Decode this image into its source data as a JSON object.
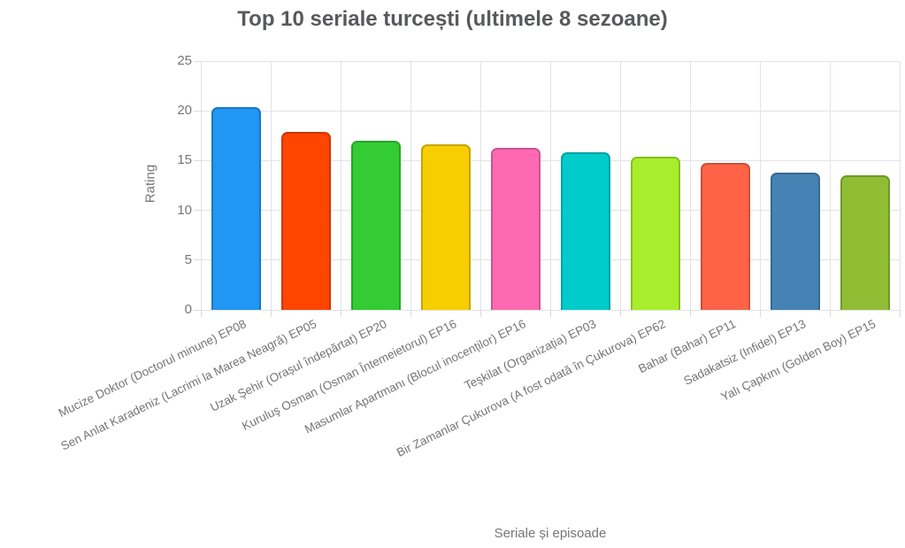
{
  "chart_data": {
    "type": "bar",
    "title": "Top 10 seriale turcești (ultimele 8 sezoane)",
    "xlabel": "Seriale și episoade",
    "ylabel": "Rating",
    "ylim": [
      0,
      25
    ],
    "yticks": [
      0,
      5,
      10,
      15,
      20,
      25
    ],
    "grid": true,
    "legend_position": "none",
    "categories": [
      "Mucize Doktor (Doctorul minune) EP08",
      "Sen Anlat Karadeniz (Lacrimi la Marea Neagră) EP05",
      "Uzak Şehir (Orașul îndepărtat) EP20",
      "Kuruluş Osman (Osman Întemeietorul) EP16",
      "Masumlar Apartmanı (Blocul inocenților) EP16",
      "Teşkilat (Organizația) EP03",
      "Bir Zamanlar Çukurova (A fost odată în Çukurova) EP62",
      "Bahar (Bahar) EP11",
      "Sadakatsiz (Infidel) EP13",
      "Yalı Çapkını (Golden Boy) EP15"
    ],
    "values": [
      20.4,
      17.9,
      17.0,
      16.6,
      16.3,
      15.8,
      15.4,
      14.8,
      13.8,
      13.5
    ],
    "bar_colors": [
      "#2196F3",
      "#FF4500",
      "#33CC33",
      "#F7CE00",
      "#FF69B4",
      "#00CCCC",
      "#A8EE2C",
      "#FF6347",
      "#4682B4",
      "#8FBE34"
    ],
    "bar_border_colors": [
      "#1A76C2",
      "#CC3700",
      "#28A328",
      "#C4A500",
      "#CC5490",
      "#00A3A3",
      "#86BE23",
      "#CC4F39",
      "#386890",
      "#72982A"
    ]
  },
  "colors": {
    "background": "#FFFFFF",
    "title_text": "#58595B",
    "axis_text": "#757575",
    "gridline": "#E3E3E3"
  }
}
